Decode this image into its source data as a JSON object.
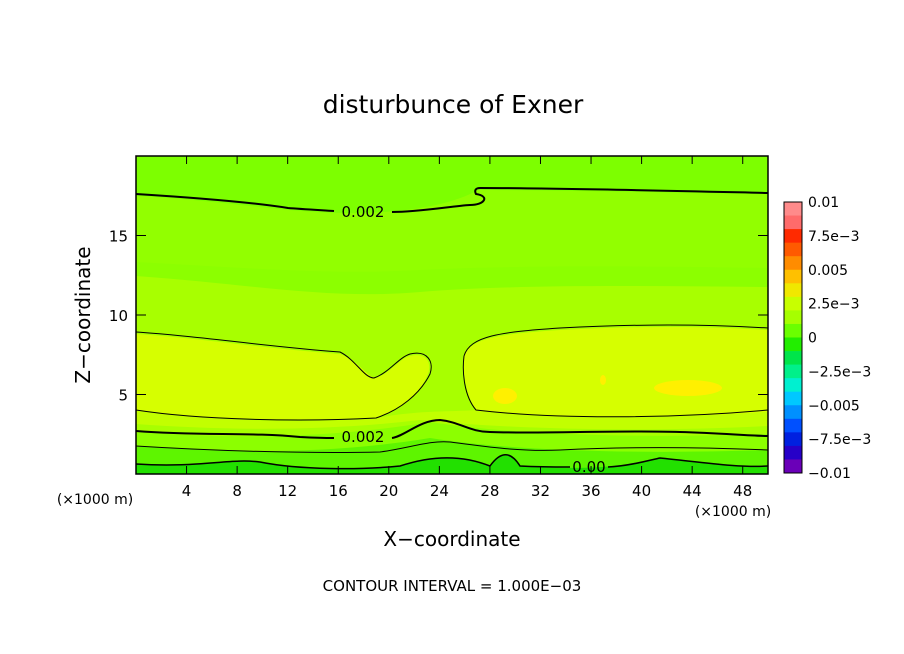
{
  "chart_data": {
    "type": "contour",
    "title": "disturbunce of Exner",
    "xlabel": "X−coordinate",
    "ylabel": "Z−coordinate",
    "x_unit_left": "(×1000 m)",
    "x_unit_right": "(×1000 m)",
    "xlim": [
      0,
      50
    ],
    "ylim": [
      0,
      20
    ],
    "x_ticks": [
      4,
      8,
      12,
      16,
      20,
      24,
      28,
      32,
      36,
      40,
      44,
      48
    ],
    "x_tick_labels": [
      "4",
      "8",
      "12",
      "16",
      "20",
      "24",
      "28",
      "32",
      "36",
      "40",
      "44",
      "48"
    ],
    "y_ticks": [
      5,
      10,
      15
    ],
    "y_tick_labels": [
      "5",
      "10",
      "15"
    ],
    "contour_interval_note": "CONTOUR INTERVAL =  1.000E−03",
    "contour_labels": [
      {
        "text": "0.002",
        "x": 17.5,
        "z": 16.5
      },
      {
        "text": "0.002",
        "x": 17.5,
        "z": 2.3
      },
      {
        "text": "0.00",
        "x": 35.5,
        "z": 0.4
      }
    ],
    "colorbar": {
      "levels": [
        0.01,
        0.0075,
        0.005,
        0.0025,
        0,
        -0.0025,
        -0.005,
        -0.0075,
        -0.01
      ],
      "labels": [
        "0.01",
        "7.5e−3",
        "0.005",
        "2.5e−3",
        "0",
        "−2.5e−3",
        "−0.005",
        "−7.5e−3",
        "−0.01"
      ],
      "colors": [
        "#ff8b8b",
        "#ff6b6b",
        "#ff2a00",
        "#ff5a00",
        "#ff8c00",
        "#ffc000",
        "#f0e800",
        "#c8ff00",
        "#a6ff00",
        "#6bff00",
        "#22ee00",
        "#00e54a",
        "#00f08a",
        "#00f0d0",
        "#00c8ff",
        "#0090ff",
        "#0050ff",
        "#0020e0",
        "#2600c8",
        "#6a00b8"
      ]
    },
    "field_colors": {
      "low_bottom": "#22e000",
      "low_mid": "#5ef500",
      "band_a": "#8cff00",
      "band_b": "#a8ff00",
      "band_c": "#c2ff00",
      "core": "#d6ff00",
      "upper": "#92ff00",
      "top": "#7dff00",
      "maxima": "#fff000"
    },
    "grid": false
  }
}
